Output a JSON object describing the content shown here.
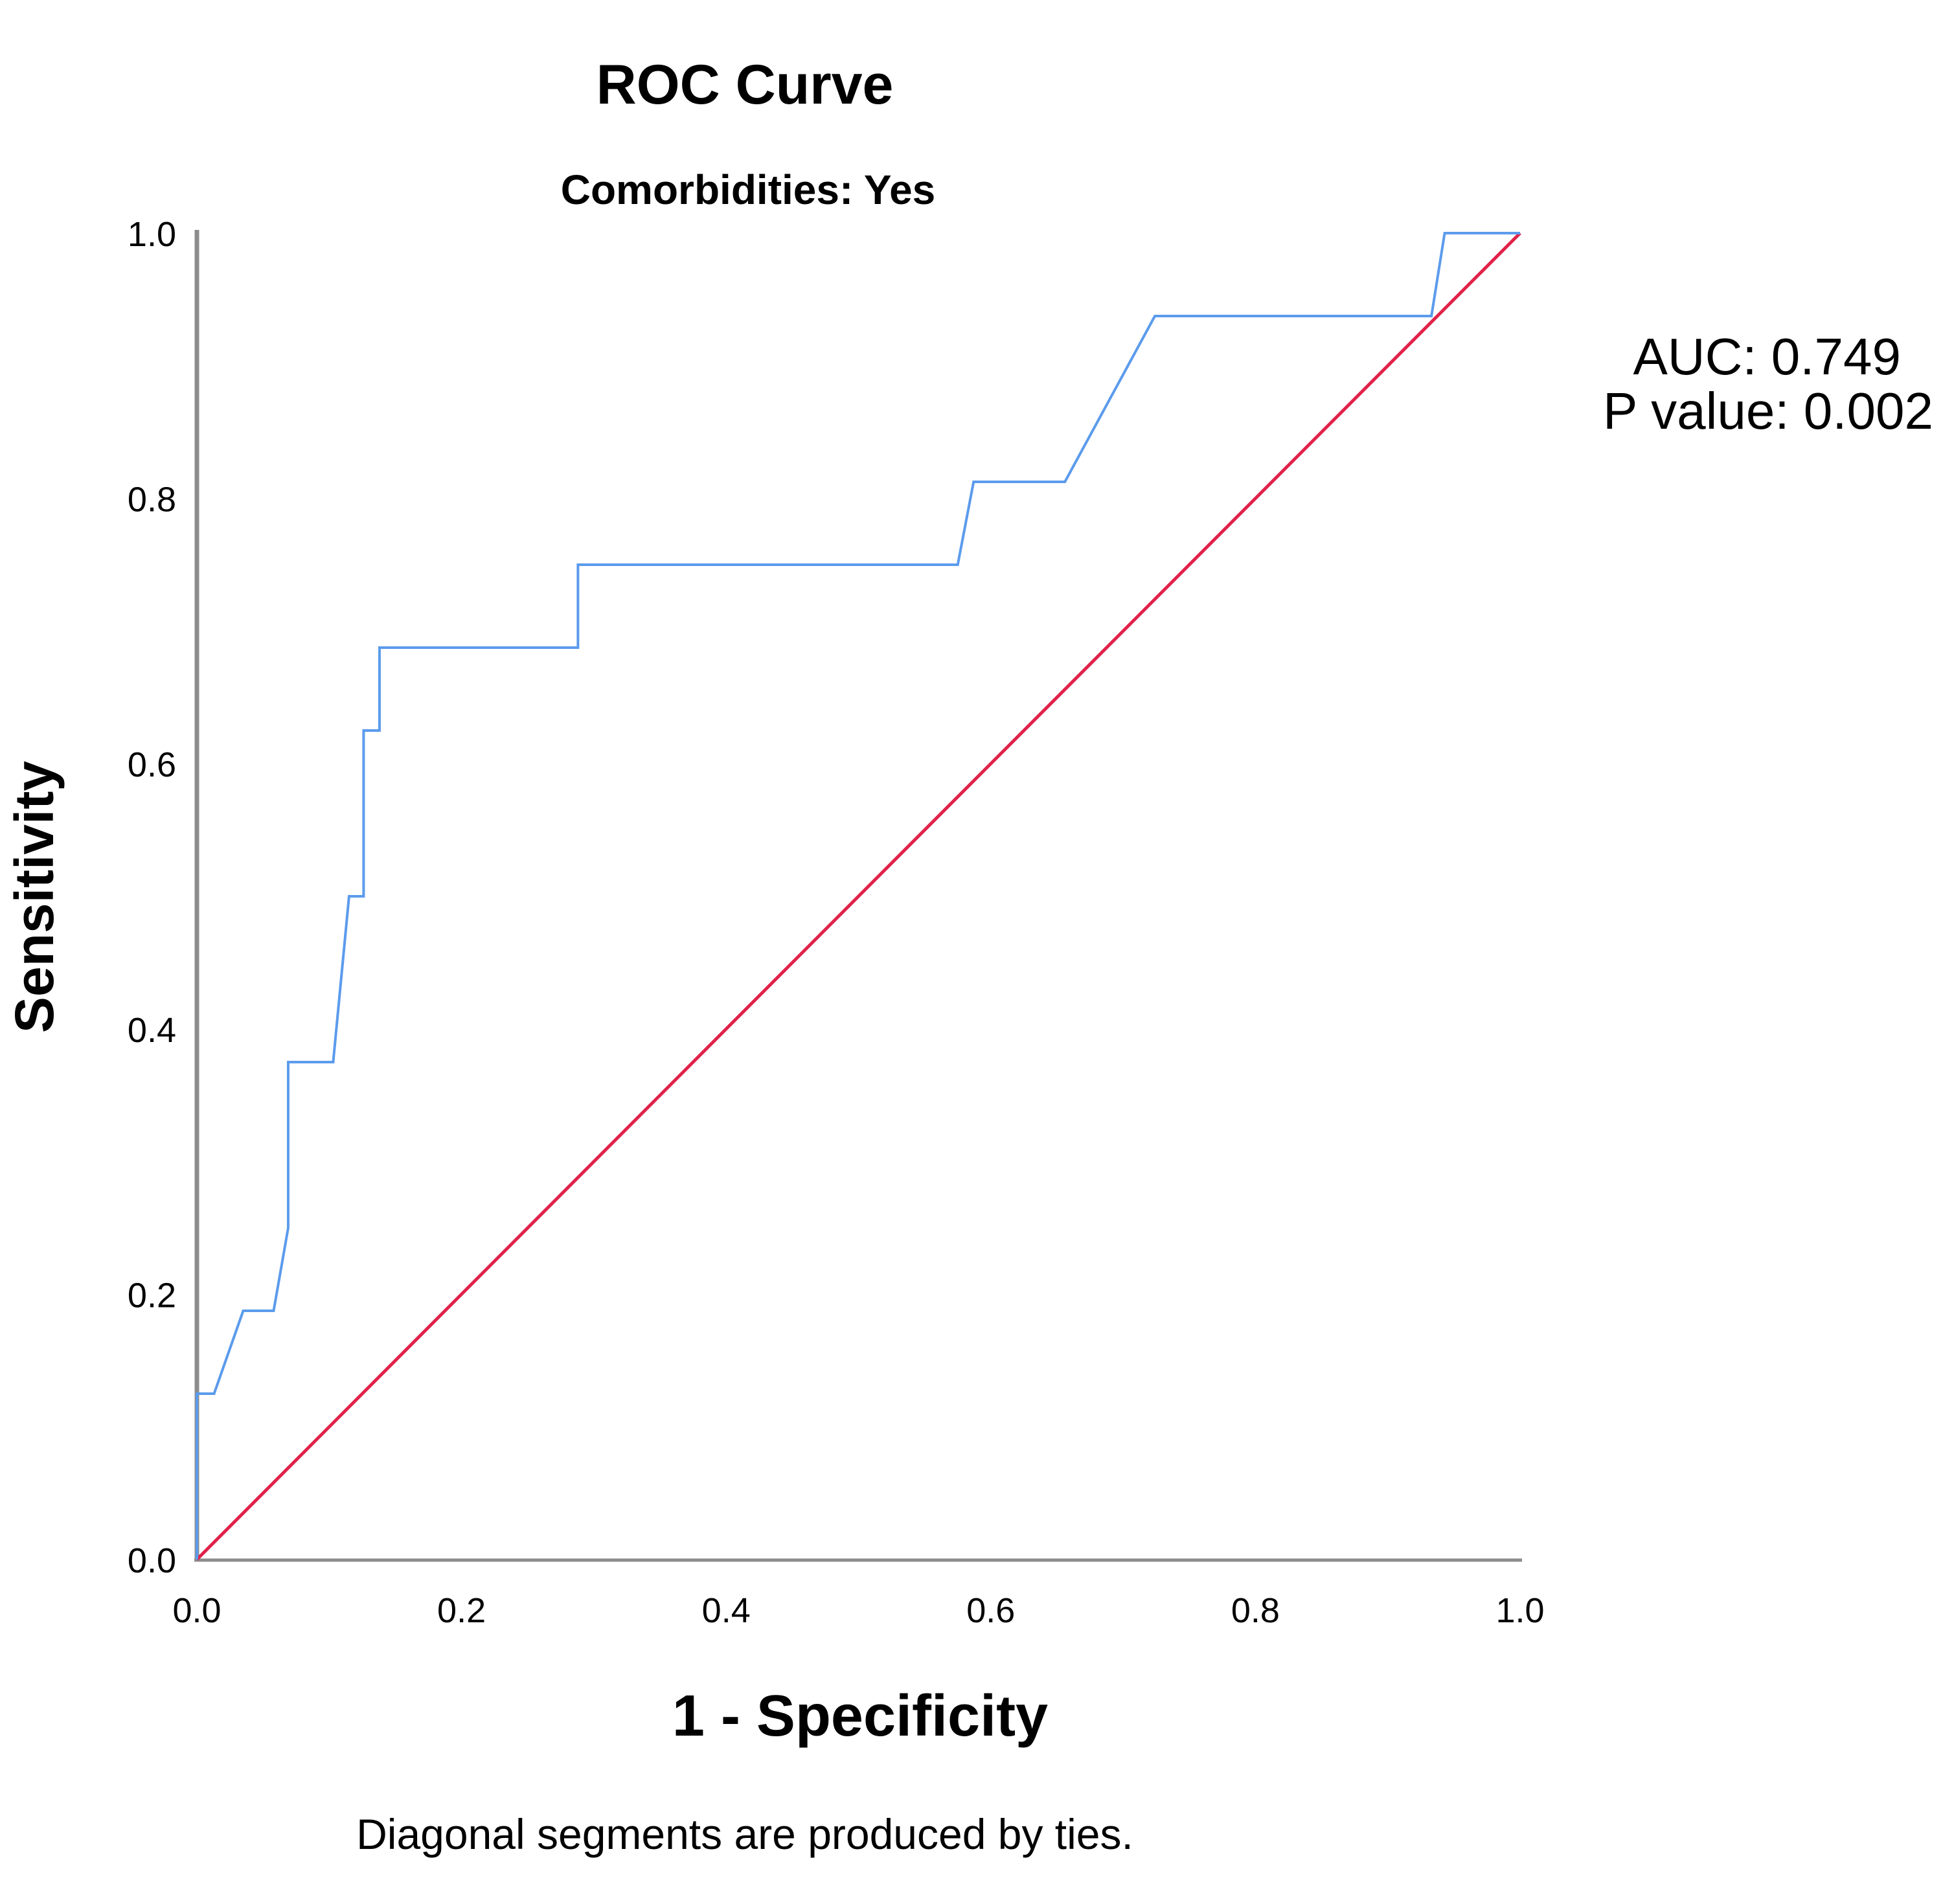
{
  "chart_data": {
    "type": "line",
    "title": "ROC Curve",
    "subtitle": "Comorbidities: Yes",
    "xlabel": "1 - Specificity",
    "ylabel": "Sensitivity",
    "xlim": [
      0,
      1
    ],
    "ylim": [
      0,
      1
    ],
    "xticks": [
      "0.0",
      "0.2",
      "0.4",
      "0.6",
      "0.8",
      "1.0"
    ],
    "yticks": [
      "0.0",
      "0.2",
      "0.4",
      "0.6",
      "0.8",
      "1.0"
    ],
    "grid": false,
    "series": [
      {
        "color": "#5b9bec",
        "points": [
          [
            0,
            0
          ],
          [
            0,
            0.125
          ],
          [
            0.013,
            0.125
          ],
          [
            0.035,
            0.1875
          ],
          [
            0.058,
            0.1875
          ],
          [
            0.069,
            0.25
          ],
          [
            0.069,
            0.375
          ],
          [
            0.103,
            0.375
          ],
          [
            0.115,
            0.5
          ],
          [
            0.126,
            0.5
          ],
          [
            0.126,
            0.625
          ],
          [
            0.138,
            0.625
          ],
          [
            0.138,
            0.6875
          ],
          [
            0.288,
            0.6875
          ],
          [
            0.288,
            0.75
          ],
          [
            0.575,
            0.75
          ],
          [
            0.587,
            0.8125
          ],
          [
            0.656,
            0.8125
          ],
          [
            0.724,
            0.9375
          ],
          [
            0.933,
            0.9375
          ],
          [
            0.943,
            1
          ],
          [
            1,
            1
          ]
        ]
      },
      {
        "color": "#e0224a",
        "points": [
          [
            0,
            0
          ],
          [
            1,
            1
          ]
        ]
      }
    ],
    "annotations": {
      "auc": "AUC: 0.749",
      "p_value": "P value: 0.002"
    },
    "footnote": "Diagonal segments are produced by ties."
  }
}
